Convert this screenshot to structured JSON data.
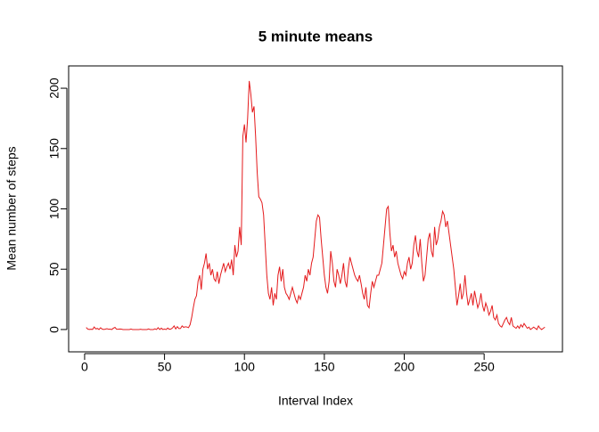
{
  "chart_data": {
    "type": "line",
    "title": "5 minute means",
    "x_label": "Interval Index",
    "y_label": "Mean number of steps",
    "xlim": [
      -10,
      299
    ],
    "ylim": [
      -18.5,
      218.5
    ],
    "xticks": [
      0,
      50,
      100,
      150,
      200,
      250
    ],
    "yticks": [
      0,
      50,
      100,
      150,
      200
    ],
    "x": [
      1,
      2,
      3,
      4,
      5,
      6,
      7,
      8,
      9,
      10,
      11,
      12,
      13,
      14,
      15,
      16,
      17,
      18,
      19,
      20,
      21,
      22,
      23,
      24,
      25,
      26,
      27,
      28,
      29,
      30,
      31,
      32,
      33,
      34,
      35,
      36,
      37,
      38,
      39,
      40,
      41,
      42,
      43,
      44,
      45,
      46,
      47,
      48,
      49,
      50,
      51,
      52,
      53,
      54,
      55,
      56,
      57,
      58,
      59,
      60,
      61,
      62,
      63,
      64,
      65,
      66,
      67,
      68,
      69,
      70,
      71,
      72,
      73,
      74,
      75,
      76,
      77,
      78,
      79,
      80,
      81,
      82,
      83,
      84,
      85,
      86,
      87,
      88,
      89,
      90,
      91,
      92,
      93,
      94,
      95,
      96,
      97,
      98,
      99,
      100,
      101,
      102,
      103,
      104,
      105,
      106,
      107,
      108,
      109,
      110,
      111,
      112,
      113,
      114,
      115,
      116,
      117,
      118,
      119,
      120,
      121,
      122,
      123,
      124,
      125,
      126,
      127,
      128,
      129,
      130,
      131,
      132,
      133,
      134,
      135,
      136,
      137,
      138,
      139,
      140,
      141,
      142,
      143,
      144,
      145,
      146,
      147,
      148,
      149,
      150,
      151,
      152,
      153,
      154,
      155,
      156,
      157,
      158,
      159,
      160,
      161,
      162,
      163,
      164,
      165,
      166,
      167,
      168,
      169,
      170,
      171,
      172,
      173,
      174,
      175,
      176,
      177,
      178,
      179,
      180,
      181,
      182,
      183,
      184,
      185,
      186,
      187,
      188,
      189,
      190,
      191,
      192,
      193,
      194,
      195,
      196,
      197,
      198,
      199,
      200,
      201,
      202,
      203,
      204,
      205,
      206,
      207,
      208,
      209,
      210,
      211,
      212,
      213,
      214,
      215,
      216,
      217,
      218,
      219,
      220,
      221,
      222,
      223,
      224,
      225,
      226,
      227,
      228,
      229,
      230,
      231,
      232,
      233,
      234,
      235,
      236,
      237,
      238,
      239,
      240,
      241,
      242,
      243,
      244,
      245,
      246,
      247,
      248,
      249,
      250,
      251,
      252,
      253,
      254,
      255,
      256,
      257,
      258,
      259,
      260,
      261,
      262,
      263,
      264,
      265,
      266,
      267,
      268,
      269,
      270,
      271,
      272,
      273,
      274,
      275,
      276,
      277,
      278,
      279,
      280,
      281,
      282,
      283,
      284,
      285,
      286,
      287,
      288
    ],
    "series": [
      {
        "color": "#e41a1c",
        "values": [
          1.7,
          0.3,
          0.1,
          0.2,
          0.1,
          2.1,
          0.5,
          0.9,
          0,
          1.5,
          0.3,
          0.1,
          0.3,
          0.7,
          0.2,
          0.3,
          0,
          1.1,
          1.8,
          0.2,
          0.2,
          0.4,
          0.3,
          0,
          0,
          0,
          0,
          0,
          0.4,
          0,
          0,
          0,
          0,
          0,
          0.2,
          0,
          0,
          0,
          0,
          0.5,
          0,
          0,
          0,
          0.6,
          0,
          1.5,
          0,
          1.1,
          0,
          0.4,
          0,
          1.2,
          0.2,
          0.4,
          1.3,
          3,
          0.5,
          2.4,
          0.8,
          0.9,
          3,
          1.8,
          2.3,
          2.1,
          1.5,
          4,
          10,
          18,
          25,
          28,
          40,
          45,
          33,
          50,
          55,
          63,
          50,
          55,
          45,
          50,
          42,
          40,
          48,
          38,
          45,
          50,
          55,
          48,
          52,
          55,
          50,
          58,
          45,
          70,
          60,
          65,
          85,
          70,
          160,
          170,
          155,
          175,
          206,
          195,
          180,
          185,
          160,
          130,
          110,
          108,
          105,
          95,
          70,
          45,
          30,
          25,
          35,
          20,
          30,
          25,
          45,
          52,
          40,
          50,
          35,
          30,
          28,
          25,
          30,
          35,
          30,
          25,
          22,
          28,
          25,
          30,
          35,
          45,
          40,
          50,
          45,
          55,
          60,
          75,
          90,
          95,
          93,
          75,
          60,
          45,
          35,
          30,
          40,
          65,
          55,
          40,
          35,
          50,
          45,
          38,
          45,
          55,
          40,
          35,
          50,
          60,
          55,
          50,
          45,
          42,
          40,
          45,
          38,
          30,
          25,
          35,
          20,
          18,
          30,
          40,
          35,
          40,
          45,
          45,
          50,
          55,
          70,
          85,
          100,
          102,
          80,
          65,
          70,
          60,
          65,
          55,
          50,
          45,
          42,
          48,
          45,
          55,
          60,
          50,
          55,
          70,
          78,
          65,
          60,
          75,
          55,
          40,
          45,
          60,
          75,
          80,
          65,
          60,
          85,
          70,
          75,
          85,
          90,
          98,
          95,
          85,
          90,
          80,
          70,
          60,
          50,
          35,
          20,
          28,
          38,
          25,
          30,
          45,
          30,
          20,
          25,
          30,
          20,
          32,
          25,
          18,
          22,
          30,
          20,
          15,
          22,
          18,
          12,
          15,
          20,
          10,
          8,
          12,
          5,
          3,
          2,
          5,
          8,
          10,
          6,
          4,
          10,
          3,
          2,
          1,
          3,
          1,
          4,
          2,
          5,
          3,
          1,
          2,
          0,
          1,
          2,
          1,
          0,
          3,
          1,
          0,
          1,
          2
        ]
      }
    ]
  }
}
